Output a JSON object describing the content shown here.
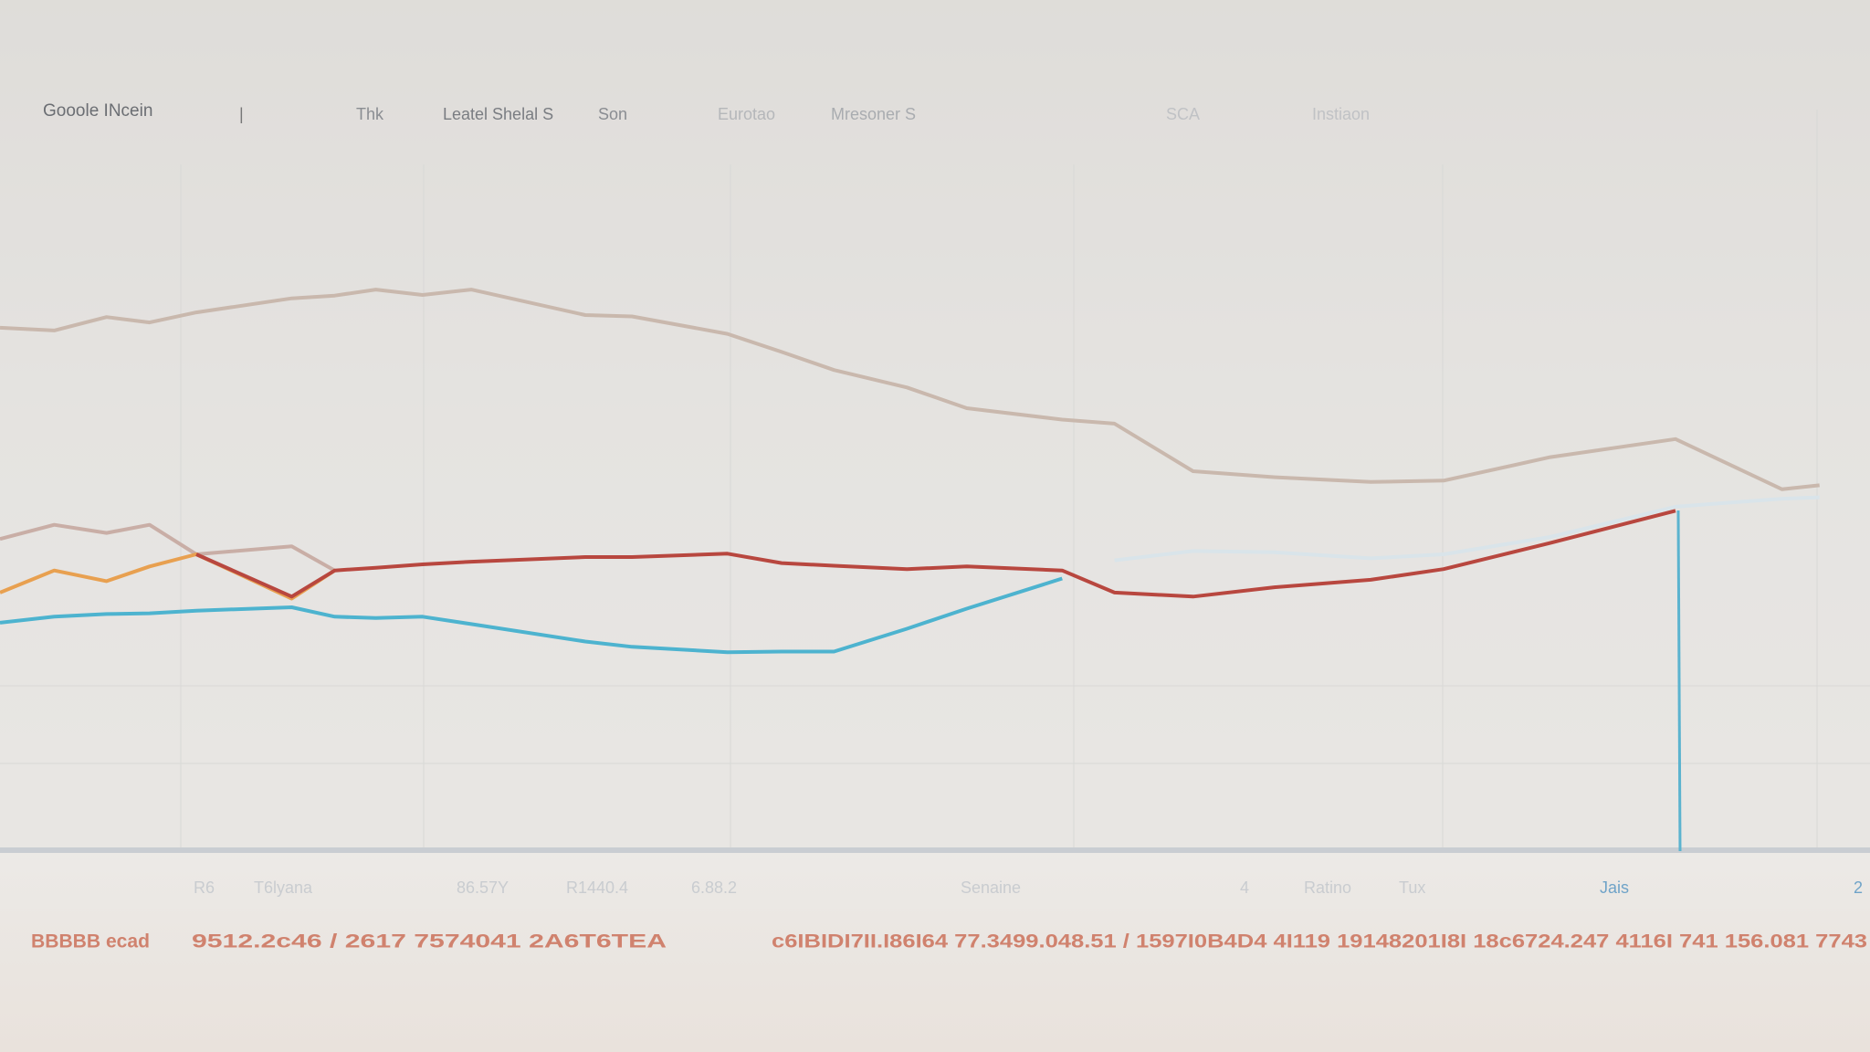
{
  "nav": {
    "brand": "Gooole INcein",
    "items": [
      "Thk",
      "Leatel Shelal S",
      "Son",
      "Eurotao",
      "Mresoner S",
      "SCA",
      "Instiaon"
    ]
  },
  "chart_data": {
    "type": "line",
    "x": [
      0,
      2.9,
      5.7,
      8.0,
      10.5,
      15.6,
      17.9,
      20.1,
      22.6,
      25.2,
      31.3,
      33.8,
      38.9,
      41.8,
      44.6,
      48.5,
      51.7,
      56.8,
      59.6,
      63.8,
      68.2,
      73.3,
      77.2,
      82.9,
      89.6,
      95.3,
      97.3
    ],
    "xlim": [
      0,
      100
    ],
    "ylim": [
      0,
      100
    ],
    "series": [
      {
        "color": "#c9b8ad",
        "values": [
          77.8,
          77.4,
          79.4,
          78.6,
          80.1,
          82.2,
          82.6,
          83.5,
          82.7,
          83.5,
          79.7,
          79.5,
          76.9,
          74.2,
          71.5,
          68.9,
          65.8,
          64.1,
          63.5,
          56.4,
          55.5,
          54.8,
          55.0,
          58.5,
          61.2,
          53.7,
          54.3
        ]
      },
      {
        "color": "#d9e4ea",
        "values": [
          null,
          null,
          null,
          null,
          null,
          null,
          null,
          null,
          null,
          null,
          null,
          null,
          null,
          null,
          null,
          null,
          null,
          null,
          43.1,
          44.5,
          44.3,
          43.4,
          44.0,
          46.6,
          51.1,
          52.3,
          52.5
        ]
      },
      {
        "color": "#c9aea6",
        "values": [
          46.3,
          48.4,
          47.2,
          48.4,
          44.0,
          45.2,
          41.6,
          null,
          null,
          null,
          null,
          null,
          null,
          null,
          null,
          null,
          null,
          null,
          null,
          null,
          null,
          null,
          null,
          null,
          null,
          null,
          null
        ]
      },
      {
        "color": "#e8a050",
        "values": [
          38.3,
          41.6,
          40.0,
          42.2,
          44.0,
          37.4,
          41.6,
          null,
          null,
          null,
          null,
          null,
          null,
          null,
          null,
          null,
          null,
          null,
          null,
          null,
          null,
          null,
          null,
          null,
          null,
          null,
          null
        ]
      },
      {
        "color": "#4db3cf",
        "values": [
          33.8,
          34.7,
          35.1,
          35.2,
          35.6,
          36.1,
          34.7,
          34.5,
          34.7,
          33.6,
          31.0,
          30.2,
          29.4,
          29.5,
          29.5,
          32.9,
          35.9,
          40.4,
          null,
          null,
          null,
          null,
          null,
          null,
          null,
          null,
          null
        ]
      },
      {
        "color": "#b8473f",
        "values": [
          null,
          null,
          null,
          null,
          44.0,
          37.7,
          41.6,
          42.0,
          42.5,
          42.9,
          43.6,
          43.6,
          44.1,
          42.7,
          42.3,
          41.8,
          42.2,
          41.6,
          38.3,
          37.7,
          39.1,
          40.2,
          41.8,
          45.7,
          50.5,
          null,
          null
        ]
      }
    ]
  },
  "footer": {
    "labels": [
      "R6",
      "T6lyana",
      "86.57Y",
      "R1440.4",
      "6.88.2",
      "Senaine",
      "4",
      "Ratino",
      "Tux",
      "Jais",
      "2"
    ],
    "values": [
      "BBBBB ecad",
      "9512.2c46 / 2617 7574041 2A6T6TEA",
      "c6IBIDI7II.I86I64 77.3499.048.51 / 1597I0B4D4 4I119 19148201I8I 18c6724.247 4116I 741 156.081 7743"
    ]
  }
}
